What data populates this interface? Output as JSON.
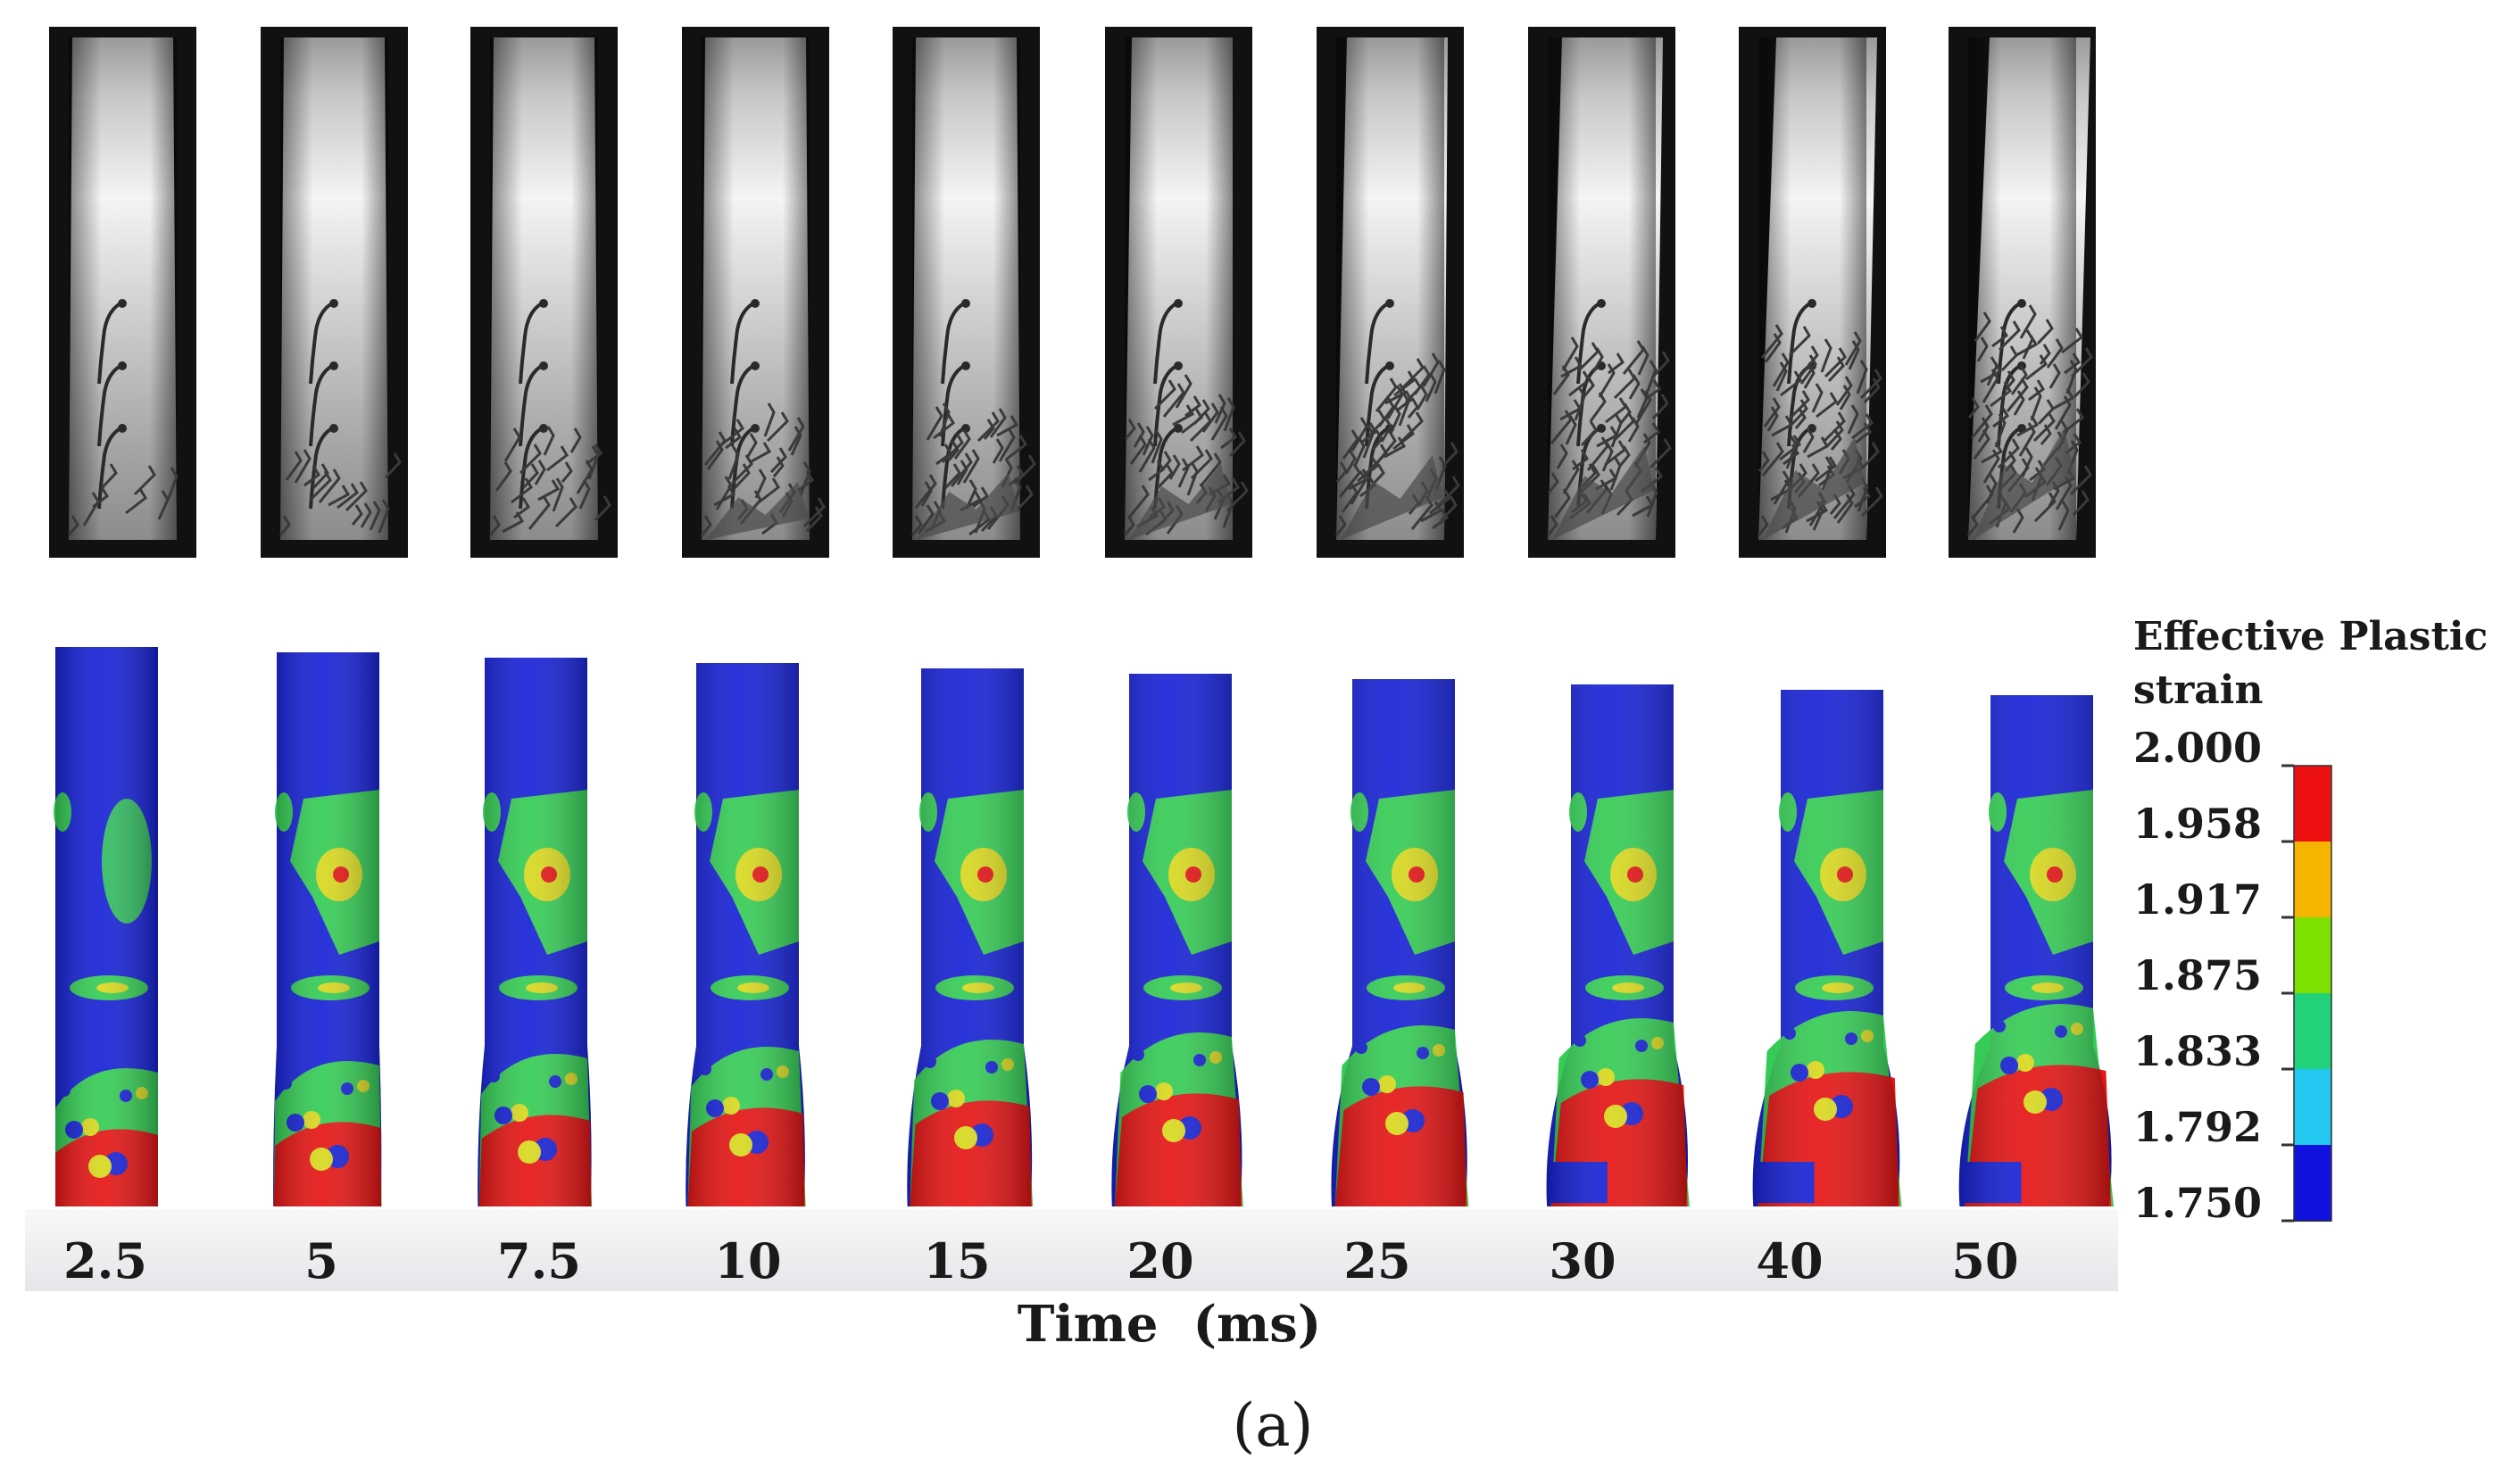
{
  "figure": {
    "caption_label": "(a)",
    "axis_title": "Time  (ms)",
    "time_labels": [
      "2.5",
      "5",
      "7.5",
      "10",
      "15",
      "20",
      "25",
      "30",
      "40",
      "50"
    ]
  },
  "legend": {
    "title_line1": "Effective Plastic",
    "title_line2": "strain",
    "values": [
      "2.000",
      "1.958",
      "1.917",
      "1.875",
      "1.833",
      "1.792",
      "1.750"
    ],
    "colors": [
      "#ee1111",
      "#f5b400",
      "#7ee000",
      "#22d27a",
      "#22c8f0",
      "#1111e0"
    ]
  },
  "colors": {
    "column_base": "#1722d6",
    "column_shade": "#0c12a8",
    "green": "#35cc55",
    "yellow": "#d8d820",
    "red": "#e51515",
    "photo_bg": "#111111",
    "strip": "#eef0f2"
  }
}
